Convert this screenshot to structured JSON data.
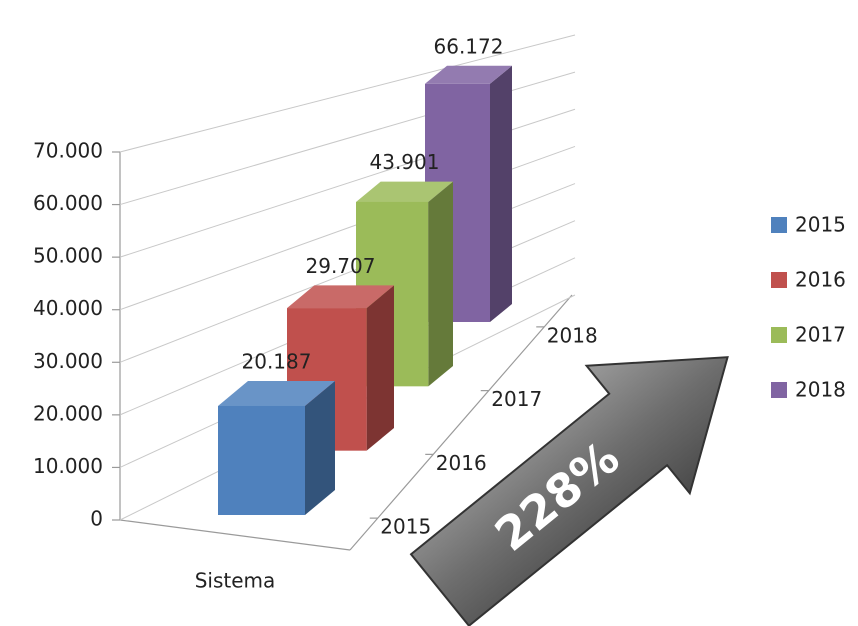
{
  "chart_data": {
    "type": "bar3d",
    "categories": [
      "Sistema"
    ],
    "series": [
      {
        "name": "2015",
        "color": "#4f81bd",
        "values": [
          20187
        ],
        "value_labels": [
          "20.187"
        ]
      },
      {
        "name": "2016",
        "color": "#c0504d",
        "values": [
          29707
        ],
        "value_labels": [
          "29.707"
        ]
      },
      {
        "name": "2017",
        "color": "#9bbb59",
        "values": [
          43901
        ],
        "value_labels": [
          "43.901"
        ]
      },
      {
        "name": "2018",
        "color": "#8064a2",
        "values": [
          66172
        ],
        "value_labels": [
          "66.172"
        ]
      }
    ],
    "ylim": [
      0,
      70000
    ],
    "yticks": [
      0,
      {
        "value": 10000,
        "label": "10.000"
      },
      {
        "value": 20000,
        "label": "20.000"
      },
      {
        "value": 30000,
        "label": "30.000"
      },
      {
        "value": 40000,
        "label": "40.000"
      },
      {
        "value": 50000,
        "label": "50.000"
      },
      {
        "value": 60000,
        "label": "60.000"
      },
      {
        "value": 70000,
        "label": "70.000"
      }
    ],
    "grid": true,
    "legend": "right",
    "annotation": "228%"
  }
}
